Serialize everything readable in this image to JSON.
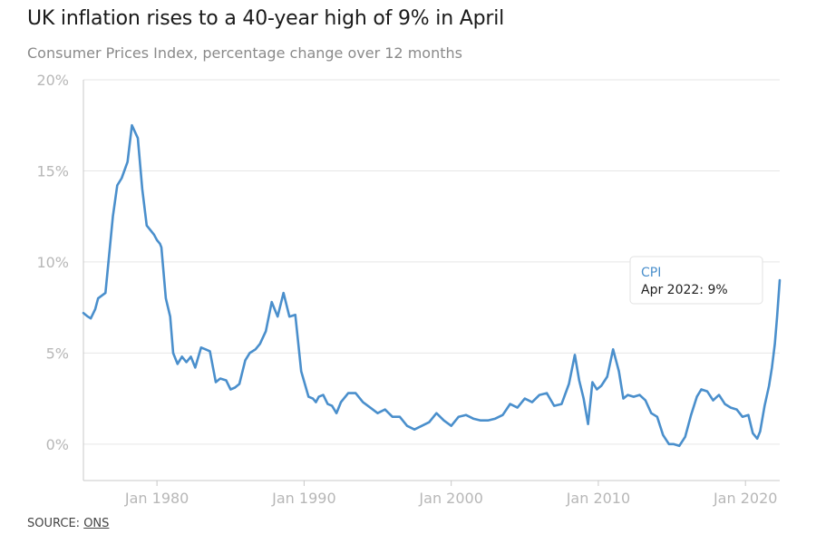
{
  "header": {
    "title": "UK inflation rises to a 40-year high of 9% in April",
    "subtitle": "Consumer Prices Index, percentage change over 12 months"
  },
  "footer": {
    "source_prefix": "SOURCE: ",
    "source_link": "ONS"
  },
  "tooltip": {
    "series": "CPI",
    "text": "Apr 2022: 9%"
  },
  "colors": {
    "line": "#4a8fcc",
    "grid": "#e6e6e6",
    "axis": "#c8c8c8",
    "tick_text": "#b7b7b7"
  },
  "chart_data": {
    "type": "line",
    "title": "UK inflation rises to a 40-year high of 9% in April",
    "subtitle": "Consumer Prices Index, percentage change over 12 months",
    "xlabel": "",
    "ylabel": "",
    "ylim": [
      -2,
      20
    ],
    "xlim": [
      1975,
      2022.33
    ],
    "y_ticks": [
      0,
      5,
      10,
      15,
      20
    ],
    "y_tick_labels": [
      "0%",
      "5%",
      "10%",
      "15%",
      "20%"
    ],
    "x_ticks": [
      1980,
      1990,
      2000,
      2010,
      2020
    ],
    "x_tick_labels": [
      "Jan 1980",
      "Jan 1990",
      "Jan 2000",
      "Jan 2010",
      "Jan 2020"
    ],
    "grid": true,
    "legend": "none",
    "series": [
      {
        "name": "CPI",
        "x": [
          1975.0,
          1975.3,
          1975.5,
          1975.8,
          1976.0,
          1976.5,
          1977.0,
          1977.3,
          1977.6,
          1978.0,
          1978.3,
          1978.7,
          1979.0,
          1979.3,
          1979.5,
          1979.8,
          1980.0,
          1980.2,
          1980.3,
          1980.6,
          1980.9,
          1981.1,
          1981.4,
          1981.7,
          1982.0,
          1982.3,
          1982.6,
          1983.0,
          1983.3,
          1983.6,
          1984.0,
          1984.3,
          1984.7,
          1985.0,
          1985.3,
          1985.6,
          1986.0,
          1986.3,
          1986.7,
          1987.0,
          1987.4,
          1987.8,
          1988.2,
          1988.6,
          1989.0,
          1989.4,
          1989.8,
          1990.3,
          1990.6,
          1990.8,
          1991.0,
          1991.3,
          1991.6,
          1991.9,
          1992.2,
          1992.5,
          1993.0,
          1993.5,
          1994.0,
          1994.5,
          1995.0,
          1995.5,
          1996.0,
          1996.5,
          1997.0,
          1997.5,
          1998.0,
          1998.5,
          1999.0,
          1999.5,
          2000.0,
          2000.5,
          2001.0,
          2001.5,
          2002.0,
          2002.5,
          2003.0,
          2003.5,
          2004.0,
          2004.5,
          2005.0,
          2005.5,
          2006.0,
          2006.5,
          2007.0,
          2007.5,
          2008.0,
          2008.4,
          2008.7,
          2009.0,
          2009.3,
          2009.6,
          2009.9,
          2010.2,
          2010.6,
          2011.0,
          2011.4,
          2011.7,
          2012.0,
          2012.4,
          2012.8,
          2013.2,
          2013.6,
          2014.0,
          2014.4,
          2014.8,
          2015.1,
          2015.5,
          2015.9,
          2016.3,
          2016.7,
          2017.0,
          2017.4,
          2017.8,
          2018.2,
          2018.6,
          2019.0,
          2019.4,
          2019.8,
          2020.2,
          2020.5,
          2020.8,
          2021.0,
          2021.3,
          2021.6,
          2021.8,
          2022.0,
          2022.15,
          2022.33
        ],
        "values": [
          7.2,
          7.0,
          6.9,
          7.4,
          8.0,
          8.3,
          12.5,
          14.2,
          14.6,
          15.5,
          17.5,
          16.8,
          14.0,
          12.0,
          11.8,
          11.5,
          11.2,
          11.0,
          10.8,
          8.0,
          7.0,
          5.0,
          4.4,
          4.8,
          4.5,
          4.8,
          4.2,
          5.3,
          5.2,
          5.1,
          3.4,
          3.6,
          3.5,
          3.0,
          3.1,
          3.3,
          4.6,
          5.0,
          5.2,
          5.5,
          6.2,
          7.8,
          7.0,
          8.3,
          7.0,
          7.1,
          4.0,
          2.6,
          2.5,
          2.3,
          2.6,
          2.7,
          2.2,
          2.1,
          1.7,
          2.3,
          2.8,
          2.8,
          2.3,
          2.0,
          1.7,
          1.9,
          1.5,
          1.5,
          1.0,
          0.8,
          1.0,
          1.2,
          1.7,
          1.3,
          1.0,
          1.5,
          1.6,
          1.4,
          1.3,
          1.3,
          1.4,
          1.6,
          2.2,
          2.0,
          2.5,
          2.3,
          2.7,
          2.8,
          2.1,
          2.2,
          3.3,
          4.9,
          3.5,
          2.5,
          1.1,
          3.4,
          3.0,
          3.2,
          3.7,
          5.2,
          4.0,
          2.5,
          2.7,
          2.6,
          2.7,
          2.4,
          1.7,
          1.5,
          0.5,
          0.0,
          0.0,
          -0.1,
          0.4,
          1.6,
          2.6,
          3.0,
          2.9,
          2.4,
          2.7,
          2.2,
          2.0,
          1.9,
          1.5,
          1.6,
          0.6,
          0.3,
          0.7,
          2.1,
          3.2,
          4.2,
          5.5,
          7.0,
          9.0
        ]
      }
    ]
  }
}
